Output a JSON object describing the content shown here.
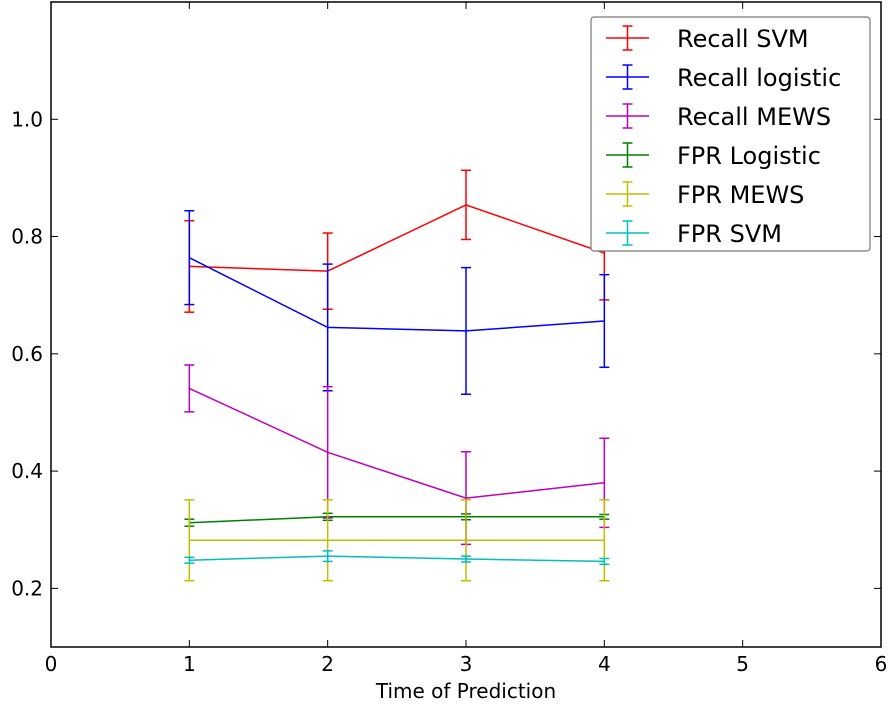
{
  "chart_data": {
    "type": "line",
    "title": "",
    "xlabel": "Time of Prediction",
    "ylabel": "",
    "xlim": [
      0,
      6
    ],
    "ylim": [
      0.1,
      1.2
    ],
    "x_ticks": [
      "0",
      "1",
      "2",
      "3",
      "4",
      "5",
      "6"
    ],
    "y_ticks": [
      "0.2",
      "0.4",
      "0.6",
      "0.8",
      "1.0"
    ],
    "grid": false,
    "legend_position": "top-right",
    "x": [
      1,
      2,
      3,
      4
    ],
    "series": [
      {
        "name": "Recall SVM",
        "color": "#ff0000",
        "values": [
          0.749,
          0.741,
          0.854,
          0.772
        ],
        "errors": [
          0.078,
          0.065,
          0.059,
          0.08
        ]
      },
      {
        "name": "Recall logistic",
        "color": "#0000ff",
        "values": [
          0.764,
          0.645,
          0.639,
          0.656
        ],
        "errors": [
          0.08,
          0.108,
          0.108,
          0.079
        ]
      },
      {
        "name": "Recall MEWS",
        "color": "#bf00bf",
        "values": [
          0.541,
          0.432,
          0.354,
          0.38
        ],
        "errors": [
          0.04,
          0.112,
          0.079,
          0.076
        ]
      },
      {
        "name": "FPR Logistic",
        "color": "#008000",
        "values": [
          0.312,
          0.322,
          0.322,
          0.322
        ],
        "errors": [
          0.006,
          0.006,
          0.005,
          0.004
        ]
      },
      {
        "name": "FPR MEWS",
        "color": "#bfbf00",
        "values": [
          0.282,
          0.282,
          0.282,
          0.282
        ],
        "errors": [
          0.069,
          0.069,
          0.069,
          0.069
        ]
      },
      {
        "name": "FPR SVM",
        "color": "#00bfbf",
        "values": [
          0.248,
          0.255,
          0.25,
          0.246
        ],
        "errors": [
          0.005,
          0.009,
          0.005,
          0.005
        ]
      }
    ]
  }
}
